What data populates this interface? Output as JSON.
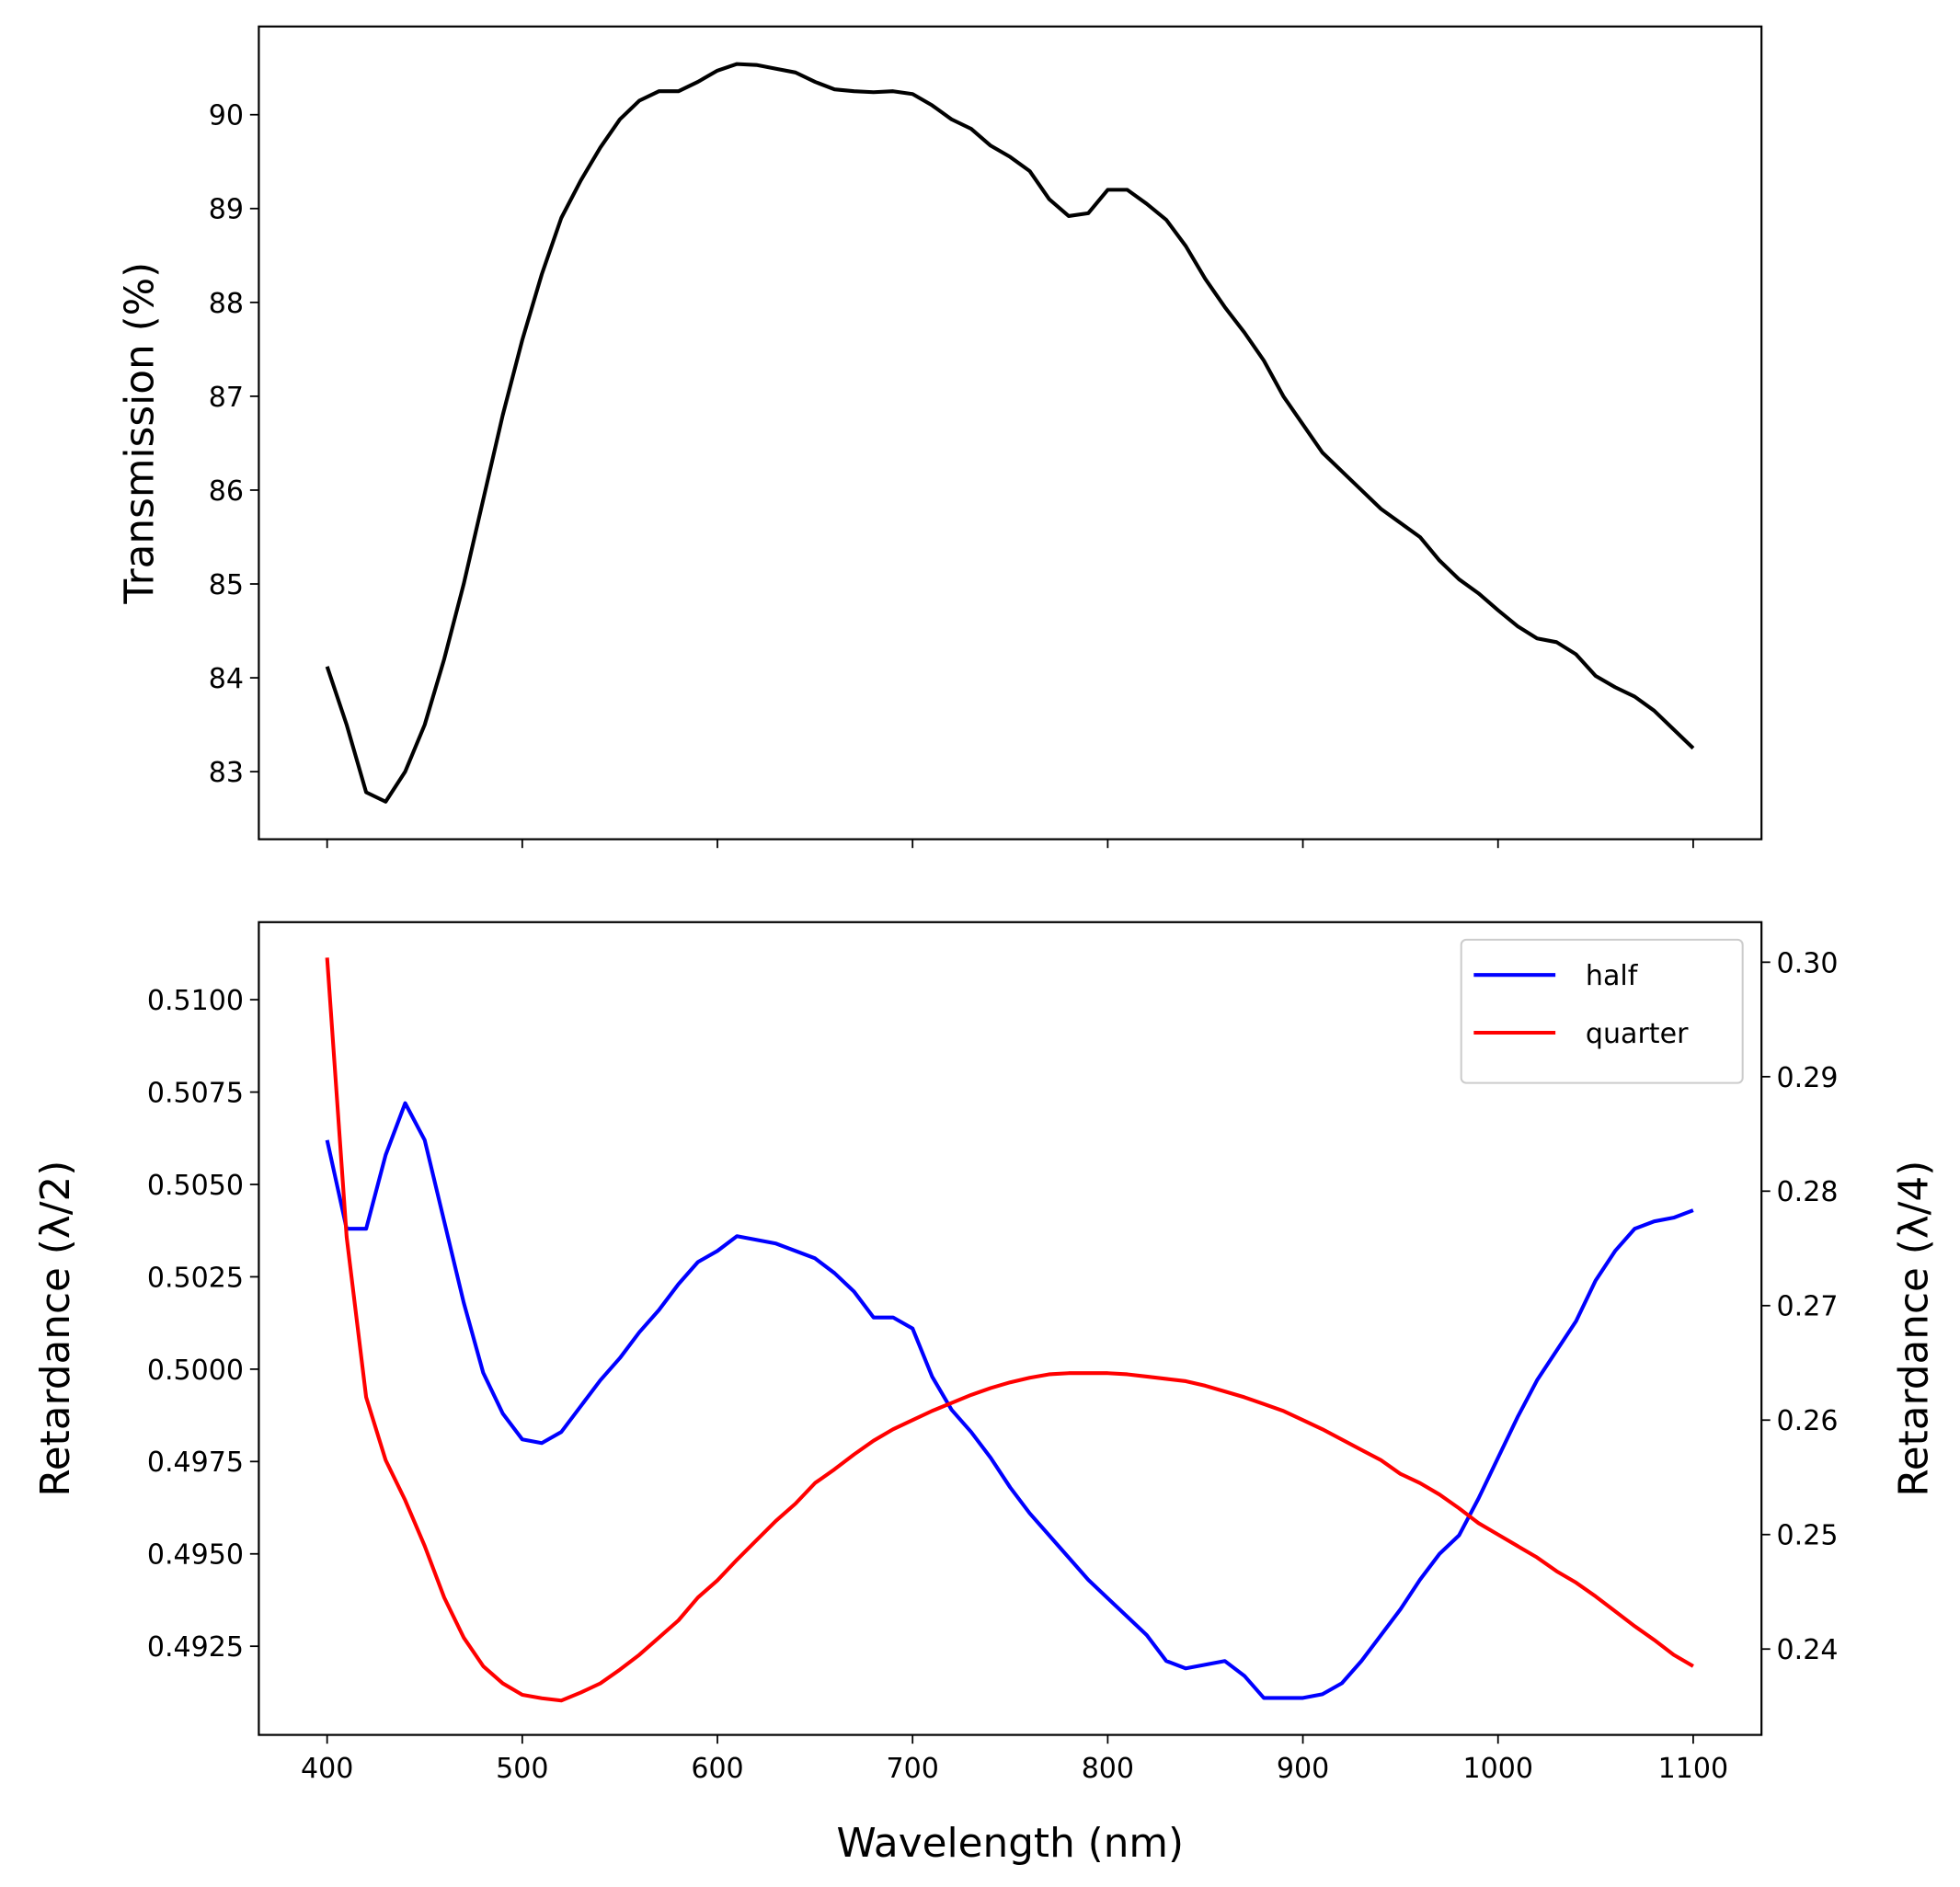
{
  "chart_data": [
    {
      "type": "line",
      "y_label": "Transmission (%)",
      "x": [
        400,
        410,
        420,
        430,
        440,
        450,
        460,
        470,
        480,
        490,
        500,
        510,
        520,
        530,
        540,
        550,
        560,
        570,
        580,
        590,
        600,
        610,
        620,
        630,
        640,
        650,
        660,
        670,
        680,
        690,
        700,
        710,
        720,
        730,
        740,
        750,
        760,
        770,
        780,
        790,
        800,
        810,
        820,
        830,
        840,
        850,
        860,
        870,
        880,
        890,
        900,
        910,
        920,
        930,
        940,
        950,
        960,
        970,
        980,
        990,
        1000,
        1010,
        1020,
        1030,
        1040,
        1050,
        1060,
        1070,
        1080,
        1090,
        1100
      ],
      "series": [
        {
          "color": "#000000",
          "values": [
            84.12,
            83.5,
            82.78,
            82.68,
            83.0,
            83.5,
            84.2,
            85.0,
            85.9,
            86.8,
            87.6,
            88.3,
            88.9,
            89.3,
            89.65,
            89.95,
            90.15,
            90.25,
            90.25,
            90.35,
            90.47,
            90.54,
            90.53,
            90.49,
            90.45,
            90.35,
            90.27,
            90.25,
            90.24,
            90.25,
            90.22,
            90.1,
            89.95,
            89.85,
            89.67,
            89.55,
            89.4,
            89.1,
            88.92,
            88.95,
            89.2,
            89.2,
            89.05,
            88.88,
            88.6,
            88.25,
            87.95,
            87.68,
            87.38,
            87.0,
            86.7,
            86.4,
            86.2,
            86.0,
            85.8,
            85.65,
            85.5,
            85.25,
            85.05,
            84.9,
            84.72,
            84.55,
            84.42,
            84.38,
            84.25,
            84.02,
            83.9,
            83.8,
            83.65,
            83.45,
            83.25
          ]
        }
      ],
      "xlim": [
        365,
        1135
      ],
      "ylim": [
        82.28,
        90.94
      ],
      "yticks": [
        83,
        84,
        85,
        86,
        87,
        88,
        89,
        90
      ]
    },
    {
      "type": "line",
      "x_label": "Wavelength (nm)",
      "y_label": "Retardance (λ/2)",
      "y2_label": "Retardance (λ/4)",
      "x": [
        400,
        410,
        420,
        430,
        440,
        450,
        460,
        470,
        480,
        490,
        500,
        510,
        520,
        530,
        540,
        550,
        560,
        570,
        580,
        590,
        600,
        610,
        620,
        630,
        640,
        650,
        660,
        670,
        680,
        690,
        700,
        710,
        720,
        730,
        740,
        750,
        760,
        770,
        780,
        790,
        800,
        810,
        820,
        830,
        840,
        850,
        860,
        870,
        880,
        890,
        900,
        910,
        920,
        930,
        940,
        950,
        960,
        970,
        980,
        990,
        1000,
        1010,
        1020,
        1030,
        1040,
        1050,
        1060,
        1070,
        1080,
        1090,
        1100
      ],
      "series": [
        {
          "name": "half",
          "color": "#0000ff",
          "values": [
            0.5062,
            0.5038,
            0.5038,
            0.5058,
            0.5072,
            0.5062,
            0.504,
            0.5018,
            0.4999,
            0.4988,
            0.4981,
            0.498,
            0.4983,
            0.499,
            0.4997,
            0.5003,
            0.501,
            0.5016,
            0.5023,
            0.5029,
            0.5032,
            0.5036,
            0.5035,
            0.5034,
            0.5032,
            0.503,
            0.5026,
            0.5021,
            0.5014,
            0.5014,
            0.5011,
            0.4998,
            0.4989,
            0.4983,
            0.4976,
            0.4968,
            0.4961,
            0.4955,
            0.4949,
            0.4943,
            0.4938,
            0.4933,
            0.4928,
            0.4921,
            0.4919,
            0.492,
            0.4921,
            0.4917,
            0.4911,
            0.4911,
            0.4911,
            0.4912,
            0.4915,
            0.4921,
            0.4928,
            0.4935,
            0.4943,
            0.495,
            0.4955,
            0.4965,
            0.4976,
            0.4987,
            0.4997,
            0.5005,
            0.5013,
            0.5024,
            0.5032,
            0.5038,
            0.504,
            0.5041,
            0.5043
          ]
        },
        {
          "name": "quarter",
          "color": "#ff0000",
          "axis": "y2",
          "values": [
            0.3004,
            0.276,
            0.262,
            0.2565,
            0.253,
            0.249,
            0.2445,
            0.241,
            0.2385,
            0.237,
            0.236,
            0.2357,
            0.2355,
            0.2362,
            0.237,
            0.2382,
            0.2395,
            0.241,
            0.2425,
            0.2445,
            0.246,
            0.2478,
            0.2495,
            0.2512,
            0.2527,
            0.2545,
            0.2557,
            0.257,
            0.2582,
            0.2592,
            0.26,
            0.2608,
            0.2615,
            0.2622,
            0.2628,
            0.2633,
            0.2637,
            0.264,
            0.2641,
            0.2641,
            0.2641,
            0.264,
            0.2638,
            0.2636,
            0.2634,
            0.263,
            0.2625,
            0.262,
            0.2614,
            0.2608,
            0.26,
            0.2592,
            0.2583,
            0.2574,
            0.2565,
            0.2553,
            0.2545,
            0.2535,
            0.2523,
            0.251,
            0.25,
            0.249,
            0.248,
            0.2468,
            0.2458,
            0.2446,
            0.2433,
            0.242,
            0.2408,
            0.2395,
            0.2385
          ]
        }
      ],
      "xlim": [
        365,
        1135
      ],
      "ylim": [
        0.4901,
        0.5121
      ],
      "y2lim": [
        0.2325,
        0.3035
      ],
      "xticks": [
        400,
        500,
        600,
        700,
        800,
        900,
        1000,
        1100
      ],
      "yticks": [
        0.4925,
        {
          "value": 0.495,
          "label": "0.4950"
        },
        0.4975,
        {
          "value": 0.5,
          "label": "0.5000"
        },
        0.5025,
        {
          "value": 0.505,
          "label": "0.5050"
        },
        0.5075,
        {
          "value": 0.51,
          "label": "0.5100"
        }
      ],
      "y2ticks": [
        0.24,
        0.25,
        0.26,
        0.27,
        0.28,
        0.29,
        {
          "value": 0.3,
          "label": "0.30"
        }
      ],
      "legend": "upper right"
    }
  ]
}
